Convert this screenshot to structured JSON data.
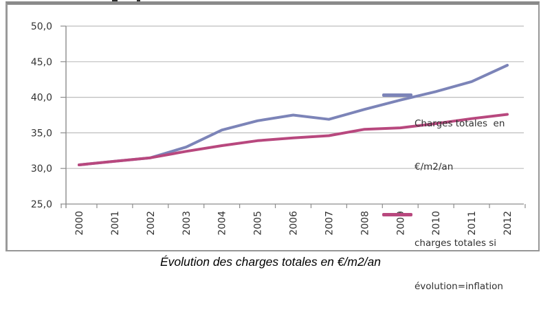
{
  "caption": "Évolution des charges totales en €/m2/an",
  "legend": {
    "items": [
      {
        "label_line1": "Charges totales  en",
        "label_line2": "€/m2/an"
      },
      {
        "label_line1": "charges totales si",
        "label_line2": "évolution=inflation"
      }
    ]
  },
  "colors": {
    "series1": "#7c84b8",
    "series2": "#b8487e",
    "gridline": "#bdbdbd",
    "axis": "#8c8c8c",
    "tick_text": "#333333",
    "frame_border": "#969696"
  },
  "chart_data": {
    "type": "line",
    "categories": [
      "2000",
      "2001",
      "2002",
      "2003",
      "2004",
      "2005",
      "2006",
      "2007",
      "2008",
      "2009",
      "2010",
      "2011",
      "2012"
    ],
    "series": [
      {
        "name": "Charges totales en €/m2/an",
        "color": "#7c84b8",
        "values": [
          30.5,
          31.0,
          31.5,
          33.0,
          35.4,
          36.7,
          37.5,
          36.9,
          38.3,
          39.6,
          40.8,
          42.2,
          44.5
        ]
      },
      {
        "name": "charges totales si évolution=inflation",
        "color": "#b8487e",
        "values": [
          30.5,
          31.0,
          31.5,
          32.4,
          33.2,
          33.9,
          34.3,
          34.6,
          35.5,
          35.7,
          36.3,
          37.0,
          37.6
        ]
      }
    ],
    "title": "",
    "xlabel": "",
    "ylabel": "",
    "ylim": [
      25,
      50
    ],
    "ytick_step": 5,
    "ytick_labels": [
      "25,0",
      "30,0",
      "35,0",
      "40,0",
      "45,0",
      "50,0"
    ],
    "grid": true,
    "legend_position": "inside-right"
  }
}
